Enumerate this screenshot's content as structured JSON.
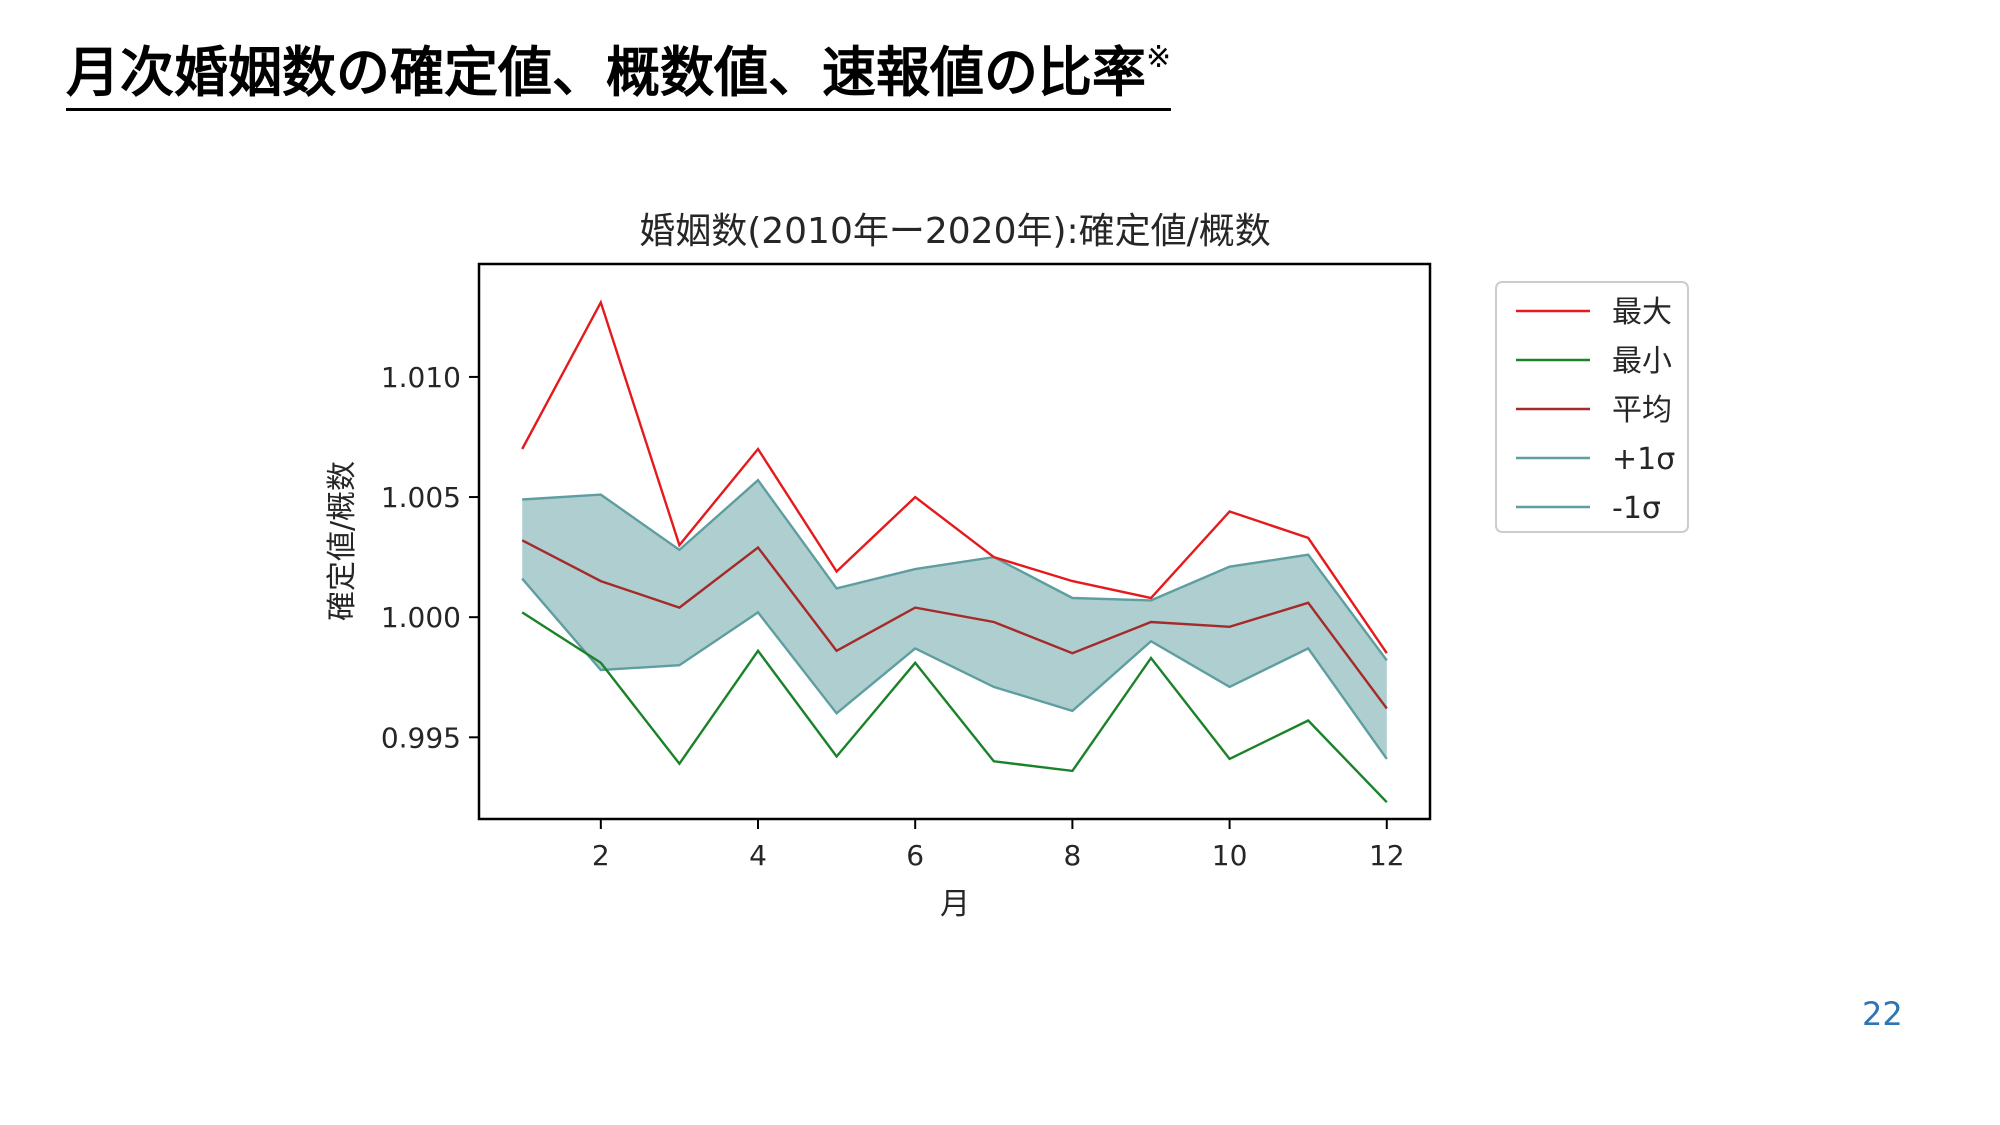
{
  "slide": {
    "title": "月次婚姻数の確定値、概数値、速報値の比率",
    "title_mark": "※",
    "page_number": "22"
  },
  "chart_data": {
    "type": "line",
    "title": "婚姻数(2010年ー2020年):確定値/概数",
    "xlabel": "月",
    "ylabel": "確定値/概数",
    "x": [
      1,
      2,
      3,
      4,
      5,
      6,
      7,
      8,
      9,
      10,
      11,
      12
    ],
    "xlim": [
      0.45,
      12.55
    ],
    "ylim": [
      0.9916,
      1.0147
    ],
    "xticks": [
      2,
      4,
      6,
      8,
      10,
      12
    ],
    "yticks": [
      0.995,
      1.0,
      1.005,
      1.01
    ],
    "ytick_labels": [
      "0.995",
      "1.000",
      "1.005",
      "1.010"
    ],
    "grid": false,
    "legend_position": "outside-right-top",
    "band": {
      "upper_series": 3,
      "lower_series": 4,
      "color": "#5f9ea0",
      "opacity": 0.5
    },
    "series": [
      {
        "name": "最大",
        "color": "#e41a1c",
        "values": [
          1.007,
          1.0131,
          1.003,
          1.007,
          1.0019,
          1.005,
          1.0025,
          1.0015,
          1.0008,
          1.0044,
          1.0033,
          0.9985
        ]
      },
      {
        "name": "最小",
        "color": "#1a8229",
        "values": [
          1.0002,
          0.9981,
          0.9939,
          0.9986,
          0.9942,
          0.9981,
          0.994,
          0.9936,
          0.9983,
          0.9941,
          0.9957,
          0.9923
        ]
      },
      {
        "name": "平均",
        "color": "#a52a2a",
        "values": [
          1.0032,
          1.0015,
          1.0004,
          1.0029,
          0.9986,
          1.0004,
          0.9998,
          0.9985,
          0.9998,
          0.9996,
          1.0006,
          0.9962
        ]
      },
      {
        "name": "+1σ",
        "color": "#5f9ea0",
        "values": [
          1.0049,
          1.0051,
          1.0028,
          1.0057,
          1.0012,
          1.002,
          1.0025,
          1.0008,
          1.0007,
          1.0021,
          1.0026,
          0.9982
        ]
      },
      {
        "name": "-1σ",
        "color": "#5f9ea0",
        "values": [
          1.0016,
          0.9978,
          0.998,
          1.0002,
          0.996,
          0.9987,
          0.9971,
          0.9961,
          0.999,
          0.9971,
          0.9987,
          0.9941
        ]
      }
    ]
  }
}
